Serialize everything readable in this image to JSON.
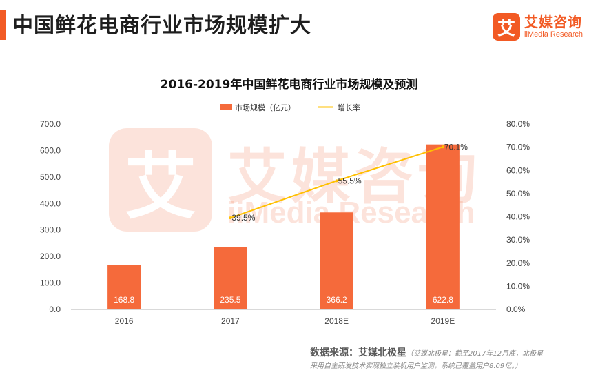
{
  "page": {
    "title": "中国鲜花电商行业市场规模扩大",
    "brand_mark": "艾",
    "brand_cn": "艾媒咨询",
    "brand_en": "iiMedia Research",
    "watermark_cn": "艾媒咨询",
    "watermark_en": "iiMedia Research",
    "accent_color": "#f25a24"
  },
  "chart_data": {
    "type": "bar",
    "title": "2016-2019年中国鲜花电商行业市场规模及预测",
    "categories": [
      "2016",
      "2017",
      "2018E",
      "2019E"
    ],
    "series": [
      {
        "name": "市场规模（亿元）",
        "type": "bar",
        "axis": "left",
        "color": "#f56a3b",
        "values": [
          168.8,
          235.5,
          366.2,
          622.8
        ],
        "labels": [
          "168.8",
          "235.5",
          "366.2",
          "622.8"
        ]
      },
      {
        "name": "增长率",
        "type": "line",
        "axis": "right",
        "color": "#ffc000",
        "values": [
          null,
          39.5,
          55.5,
          70.1
        ],
        "labels": [
          "",
          "39.5%",
          "55.5%",
          "70.1%"
        ]
      }
    ],
    "y_left": {
      "min": 0,
      "max": 700,
      "ticks": [
        "0.0",
        "100.0",
        "200.0",
        "300.0",
        "400.0",
        "500.0",
        "600.0",
        "700.0"
      ]
    },
    "y_right": {
      "min": 0,
      "max": 80,
      "ticks": [
        "0.0%",
        "10.0%",
        "20.0%",
        "30.0%",
        "40.0%",
        "50.0%",
        "60.0%",
        "70.0%",
        "80.0%"
      ]
    },
    "legend": {
      "position": "top"
    },
    "grid": false
  },
  "source": {
    "label": "数据来源：艾媒北极星",
    "note_line1": "（艾媒北极星：截至2017年12月底，北极星",
    "note_line2": "采用自主研发技术实现独立装机用户监测，系统已覆盖用户8.09亿。）"
  }
}
